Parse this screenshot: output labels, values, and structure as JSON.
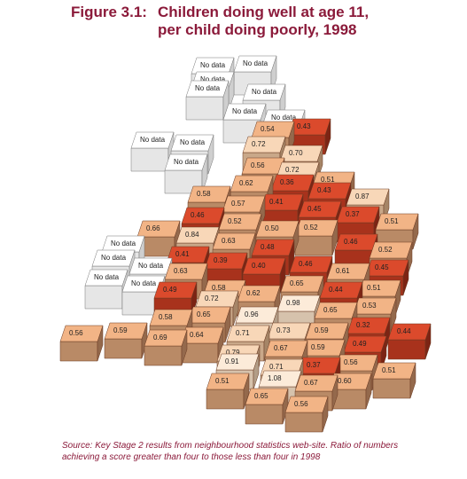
{
  "title": {
    "figure": "Figure 3.1:",
    "lines": [
      "Children doing well at age 11,",
      "per child doing poorly, 1998"
    ]
  },
  "cells": [
    {
      "label": "No data"
    },
    {
      "label": "No data"
    },
    {
      "label": "No data"
    },
    {
      "label": "No data"
    },
    {
      "label": "No data"
    },
    {
      "label": "No data"
    },
    {
      "label": "No data"
    },
    {
      "label": "No data"
    },
    {
      "label": "No data"
    },
    {
      "label": "No data"
    },
    {
      "label": "No data"
    },
    {
      "label": "No data"
    },
    {
      "label": "No data"
    },
    {
      "label": "No data"
    },
    {
      "label": "No data"
    },
    {
      "label": "0.43"
    },
    {
      "label": "0.54"
    },
    {
      "label": "0.72"
    },
    {
      "label": "0.70"
    },
    {
      "label": "0.56"
    },
    {
      "label": "0.72"
    },
    {
      "label": "0.51"
    },
    {
      "label": "0.62"
    },
    {
      "label": "0.36"
    },
    {
      "label": "0.43"
    },
    {
      "label": "0.87"
    },
    {
      "label": "0.58"
    },
    {
      "label": "0.57"
    },
    {
      "label": "0.41"
    },
    {
      "label": "0.45"
    },
    {
      "label": "0.37"
    },
    {
      "label": "0.51"
    },
    {
      "label": "0.46"
    },
    {
      "label": "0.52"
    },
    {
      "label": "0.50"
    },
    {
      "label": "0.52"
    },
    {
      "label": "0.46"
    },
    {
      "label": "0.52"
    },
    {
      "label": "0.66"
    },
    {
      "label": "0.84"
    },
    {
      "label": "0.63"
    },
    {
      "label": "0.48"
    },
    {
      "label": "0.41"
    },
    {
      "label": "0.39"
    },
    {
      "label": "0.40"
    },
    {
      "label": "0.46"
    },
    {
      "label": "0.61"
    },
    {
      "label": "0.45"
    },
    {
      "label": "0.63"
    },
    {
      "label": "0.58"
    },
    {
      "label": "0.65"
    },
    {
      "label": "0.44"
    },
    {
      "label": "0.51"
    },
    {
      "label": "0.49"
    },
    {
      "label": "0.72"
    },
    {
      "label": "0.62"
    },
    {
      "label": "0.98"
    },
    {
      "label": "0.65"
    },
    {
      "label": "0.53"
    },
    {
      "label": "0.58"
    },
    {
      "label": "0.65"
    },
    {
      "label": "0.96"
    },
    {
      "label": "0.56"
    },
    {
      "label": "0.59"
    },
    {
      "label": "0.69"
    },
    {
      "label": "0.64"
    },
    {
      "label": "0.71"
    },
    {
      "label": "0.73"
    },
    {
      "label": "0.59"
    },
    {
      "label": "0.32"
    },
    {
      "label": "0.44"
    },
    {
      "label": "0.67"
    },
    {
      "label": "0.49"
    },
    {
      "label": "0.79"
    },
    {
      "label": "0.59"
    },
    {
      "label": "0.91"
    },
    {
      "label": "0.37"
    },
    {
      "label": "0.56"
    },
    {
      "label": "0.71"
    },
    {
      "label": "0.51"
    },
    {
      "label": "1.08"
    },
    {
      "label": "0.67"
    },
    {
      "label": "0.60"
    },
    {
      "label": "0.51"
    },
    {
      "label": "0.65"
    },
    {
      "label": "0.56"
    }
  ],
  "source": "Source: Key Stage 2 results from neighbourhood statistics web-site. Ratio of numbers achieving a score greater than four to those less than four in 1998"
}
